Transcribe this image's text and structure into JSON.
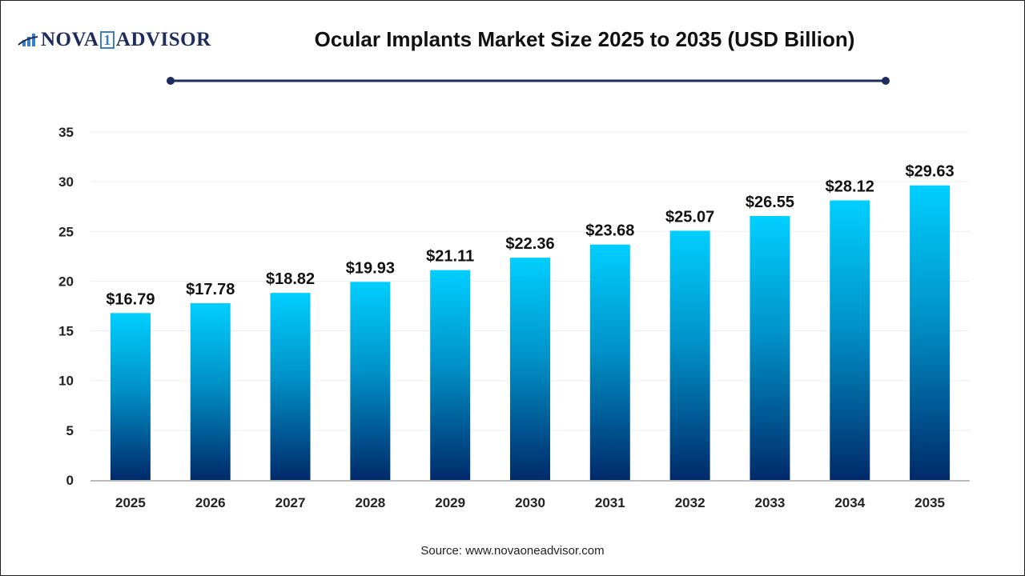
{
  "logo": {
    "text_left": "NOVA",
    "text_mid": "1",
    "text_right": "ADVISOR"
  },
  "chart_data": {
    "type": "bar",
    "title": "Ocular Implants Market Size 2025 to 2035 (USD Billion)",
    "categories": [
      "2025",
      "2026",
      "2027",
      "2028",
      "2029",
      "2030",
      "2031",
      "2032",
      "2033",
      "2034",
      "2035"
    ],
    "values": [
      16.79,
      17.78,
      18.82,
      19.93,
      21.11,
      22.36,
      23.68,
      25.07,
      26.55,
      28.12,
      29.63
    ],
    "data_labels": [
      "$16.79",
      "$17.78",
      "$18.82",
      "$19.93",
      "$21.11",
      "$22.36",
      "$23.68",
      "$25.07",
      "$26.55",
      "$28.12",
      "$29.63"
    ],
    "xlabel": "",
    "ylabel": "",
    "ylim": [
      0,
      35
    ],
    "yticks": [
      "0",
      "5",
      "10",
      "15",
      "20",
      "25",
      "30",
      "35"
    ],
    "grid": true,
    "legend": "none",
    "colors": {
      "bar_top": "#00cfff",
      "bar_bottom": "#002a6a",
      "title_line": "#1d2b5e"
    }
  },
  "source": "Source: www.novaoneadvisor.com"
}
